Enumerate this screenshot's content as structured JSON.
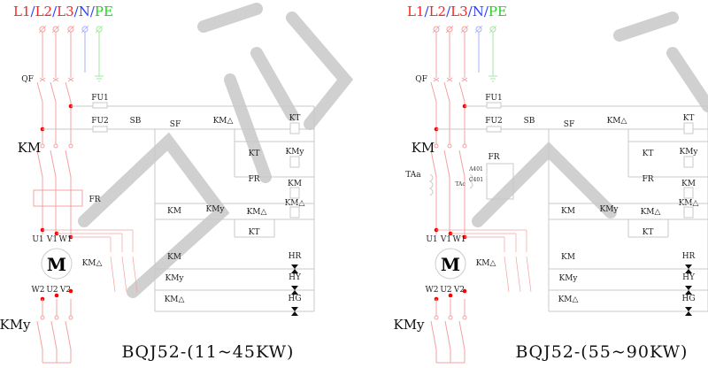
{
  "supply": {
    "items": [
      "L1",
      "L2",
      "L3",
      "N",
      "PE"
    ],
    "separator": "/",
    "colors": [
      "#ff2020",
      "#ff2020",
      "#ff2020",
      "#3040ff",
      "#20d020"
    ],
    "separator_color": "#3040ff"
  },
  "colors": {
    "power": "#f4a0a0",
    "control": "#c8c8c8",
    "node": "#ff0000",
    "watermark": "#c8c8c8"
  },
  "diagrams": [
    {
      "title": "BQJ52-(11~45KW)",
      "labels": {
        "qf": "QF",
        "fu1": "FU1",
        "fu2": "FU2",
        "sb": "SB",
        "sf": "SF",
        "km_delta_top": "KM△",
        "kt_coil": "KT",
        "kt_nc": "KT",
        "kmy_coil": "KMy",
        "fr_contact": "FR",
        "km_coil": "KM",
        "km_hold": "KM",
        "kmy_contact": "KMy",
        "km_delta_contact": "KM△",
        "km_delta_coil": "KM△",
        "kt_no": "KT",
        "km_lamp": "KM",
        "hr": "HR",
        "kmy_lamp": "KMy",
        "hy": "HY",
        "km_delta_lamp": "KM△",
        "hg": "HG",
        "km_main": "KM",
        "fr_main": "FR",
        "u1": "U1",
        "v1": "V1",
        "w1": "W1",
        "motor": "M",
        "km_delta_main": "KM△",
        "w2": "W2",
        "u2": "U2",
        "v2": "V2",
        "kmy_main": "KMy"
      }
    },
    {
      "title": "BQJ52-(55~90KW)",
      "labels": {
        "qf": "QF",
        "fu1": "FU1",
        "fu2": "FU2",
        "sb": "SB",
        "sf": "SF",
        "km_delta_top": "KM△",
        "kt_coil": "KT",
        "kt_nc": "KT",
        "kmy_coil": "KMy",
        "fr_contact": "FR",
        "km_coil": "KM",
        "km_hold": "KM",
        "kmy_contact": "KMy",
        "km_delta_contact": "KM△",
        "km_delta_coil": "KM△",
        "kt_no": "KT",
        "km_lamp": "KM",
        "hr": "HR",
        "kmy_lamp": "KMy",
        "hy": "HY",
        "km_delta_lamp": "KM△",
        "hg": "HG",
        "km_main": "KM",
        "fr_main": "FR",
        "u1": "U1",
        "v1": "V1",
        "w1": "W1",
        "motor": "M",
        "km_delta_main": "KM△",
        "w2": "W2",
        "u2": "U2",
        "v2": "V2",
        "kmy_main": "KMy",
        "taa": "TAa",
        "tac": "TAc",
        "a401": "A401",
        "c401": "C401"
      }
    }
  ]
}
